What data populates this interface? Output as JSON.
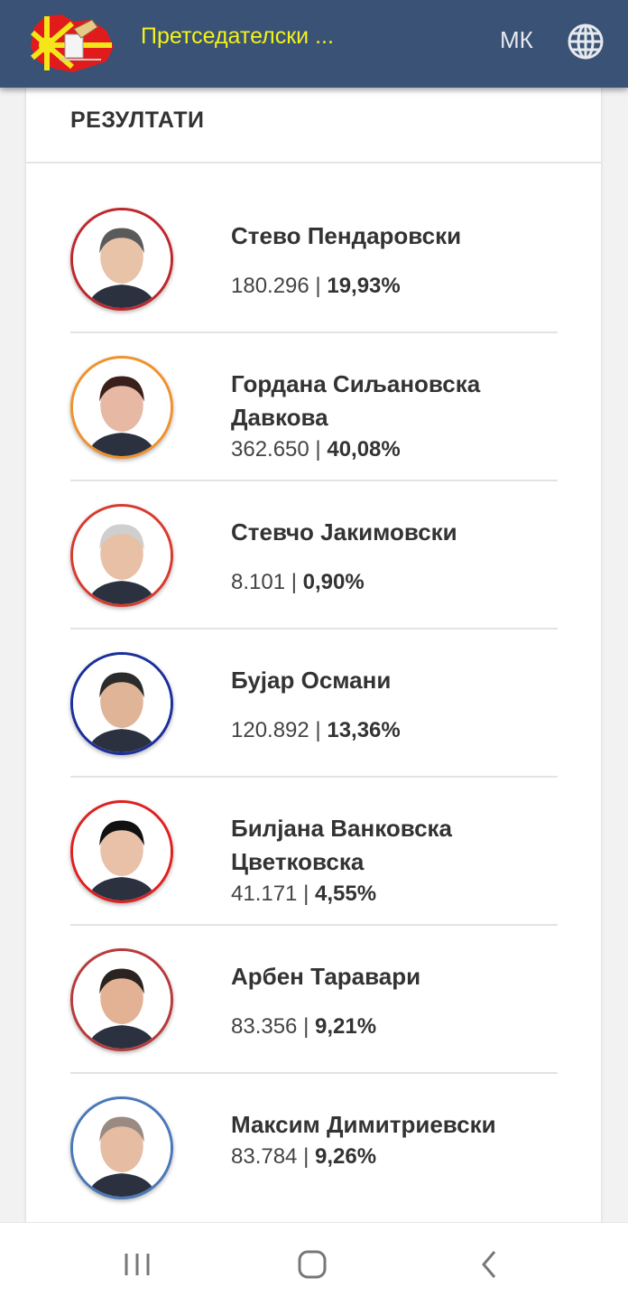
{
  "appbar": {
    "title": "Претседателски ...",
    "language": "МК"
  },
  "card": {
    "title": "РЕЗУЛТАТИ"
  },
  "candidates": [
    {
      "name": "Стево Пендаровски",
      "votes": "180.296",
      "percent": "19,93%",
      "color": "#c0272d",
      "two_line": false
    },
    {
      "name": "Гордана Сиљановска Давкова",
      "votes": "362.650",
      "percent": "40,08%",
      "color": "#f0922b",
      "two_line": true
    },
    {
      "name": "Стевчо Јакимовски",
      "votes": "8.101",
      "percent": "0,90%",
      "color": "#d93a2e",
      "two_line": false
    },
    {
      "name": "Бујар Османи",
      "votes": "120.892",
      "percent": "13,36%",
      "color": "#1a2f9c",
      "two_line": false
    },
    {
      "name": "Билјана Ванковска Цветковска",
      "votes": "41.171",
      "percent": "4,55%",
      "color": "#e0201f",
      "two_line": true
    },
    {
      "name": "Арбен Таравари",
      "votes": "83.356",
      "percent": "9,21%",
      "color": "#b83a3a",
      "two_line": false
    },
    {
      "name": "Максим Димитриевски",
      "votes": "83.784",
      "percent": "9,26%",
      "color": "#4a78b8",
      "two_line": true
    }
  ],
  "colors": {
    "appbar": "#3a5276",
    "title": "#f3f31a"
  },
  "icons": {
    "logo": "macedonia-map-ballot-logo",
    "language": "globe-icon",
    "nav": [
      "recent-apps-icon",
      "home-icon",
      "back-icon"
    ]
  }
}
